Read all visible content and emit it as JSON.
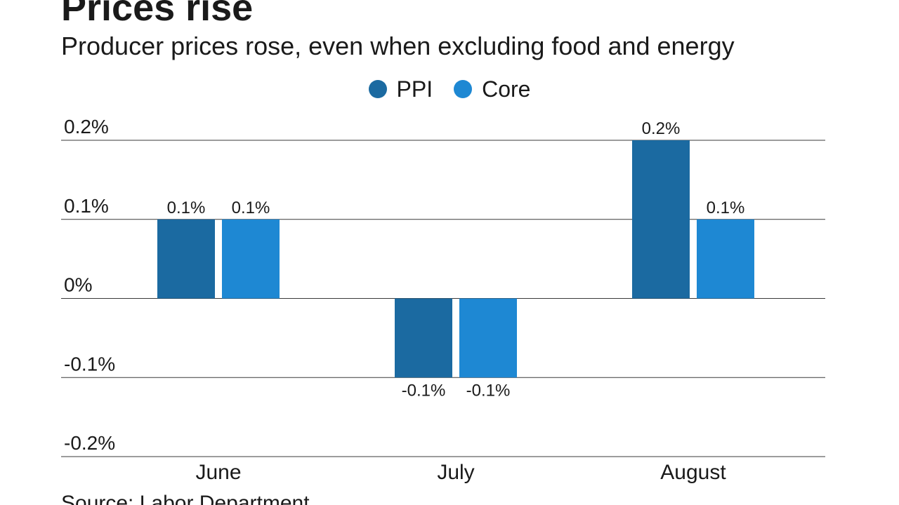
{
  "title": "Prices rise",
  "subtitle": "Producer prices rose, even when excluding food and energy",
  "source": "Source: Labor Department",
  "chart_data": {
    "type": "bar",
    "title": "Prices rise",
    "subtitle": "Producer prices rose, even when excluding food and energy",
    "xlabel": "",
    "ylabel": "",
    "categories": [
      "June",
      "July",
      "August"
    ],
    "series": [
      {
        "name": "PPI",
        "color": "#1b6aa1",
        "values": [
          0.1,
          -0.1,
          0.2
        ],
        "labels": [
          "0.1%",
          "-0.1%",
          "0.2%"
        ]
      },
      {
        "name": "Core",
        "color": "#1e88d3",
        "values": [
          0.1,
          -0.1,
          0.1
        ],
        "labels": [
          "0.1%",
          "-0.1%",
          "0.1%"
        ]
      }
    ],
    "ylim": [
      -0.2,
      0.2
    ],
    "yticks": [
      0.2,
      0.1,
      0,
      -0.1,
      -0.2
    ],
    "ytick_labels": [
      "0.2%",
      "0.1%",
      "0%",
      "-0.1%",
      "-0.2%"
    ],
    "grid": true,
    "legend_position": "top-center"
  }
}
